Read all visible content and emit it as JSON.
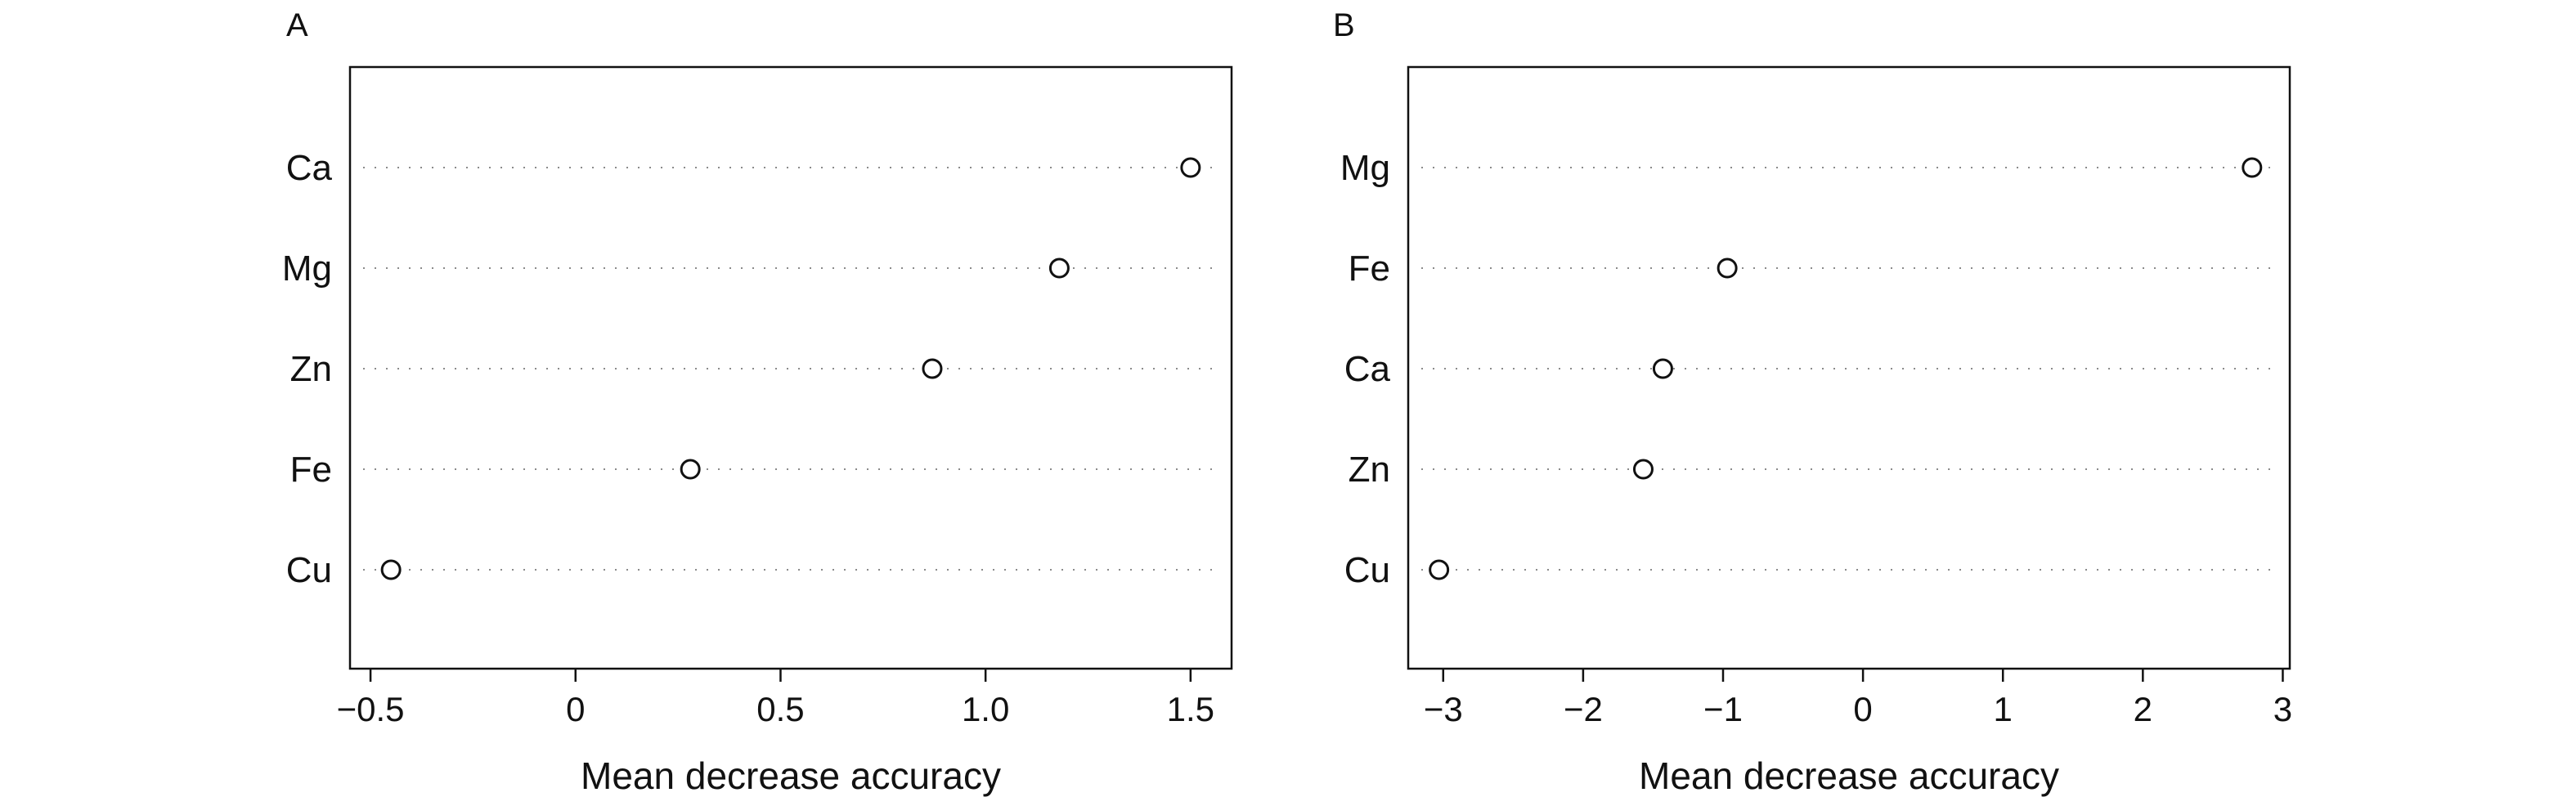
{
  "chart_data": [
    {
      "panel": "A",
      "type": "scatter",
      "xlabel": "Mean decrease accuracy",
      "xlim": [
        -0.55,
        1.6
      ],
      "xticks": [
        -0.5,
        0,
        0.5,
        1.0,
        1.5
      ],
      "xtick_labels": [
        "−0.5",
        "0",
        "0.5",
        "1.0",
        "1.5"
      ],
      "categories": [
        "Ca",
        "Mg",
        "Zn",
        "Fe",
        "Cu"
      ],
      "values": [
        1.5,
        1.18,
        0.87,
        0.28,
        -0.45
      ],
      "grid": "dotted horizontal guide lines"
    },
    {
      "panel": "B",
      "type": "scatter",
      "xlabel": "Mean decrease accuracy",
      "xlim": [
        -3.25,
        3.05
      ],
      "xticks": [
        -3,
        -2,
        -1,
        0,
        1,
        2,
        3
      ],
      "xtick_labels": [
        "−3",
        "−2",
        "−1",
        "0",
        "1",
        "2",
        "3"
      ],
      "categories": [
        "Mg",
        "Fe",
        "Ca",
        "Zn",
        "Cu"
      ],
      "values": [
        2.78,
        -0.97,
        -1.43,
        -1.57,
        -3.03
      ],
      "grid": "dotted horizontal guide lines"
    }
  ]
}
